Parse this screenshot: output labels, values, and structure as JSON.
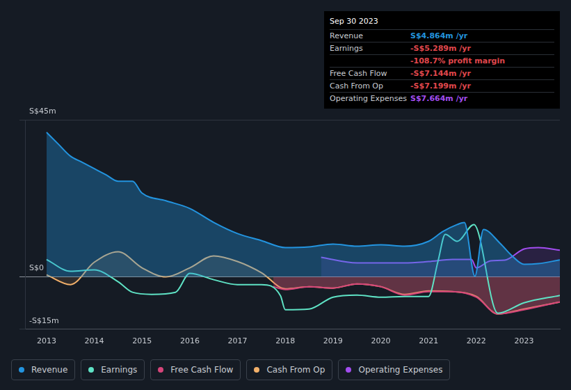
{
  "chart_data": {
    "type": "line",
    "grid": true,
    "legend": "bottom",
    "xlim": [
      2012.55,
      2023.75
    ],
    "xticks": [
      2013,
      2014,
      2015,
      2016,
      2017,
      2018,
      2019,
      2020,
      2021,
      2022,
      2023
    ],
    "ylim": [
      -15,
      45
    ],
    "yticks": [
      {
        "value": -15,
        "label": "-S$15m"
      },
      {
        "value": 0,
        "label": "S$0"
      },
      {
        "value": 45,
        "label": "S$45m"
      }
    ],
    "series": [
      {
        "name": "Revenue",
        "color": "#2394df",
        "x": [
          2013,
          2013.25,
          2013.5,
          2013.75,
          2014,
          2014.25,
          2014.5,
          2014.8,
          2015,
          2015.5,
          2016,
          2016.5,
          2017,
          2017.5,
          2018,
          2018.5,
          2019,
          2019.5,
          2020,
          2020.5,
          2021,
          2021.3,
          2021.6,
          2021.75,
          2021.97,
          2022.15,
          2022.5,
          2022.75,
          2023,
          2023.3,
          2023.75
        ],
        "values": [
          41.4,
          38,
          34.6,
          32.8,
          31,
          29.2,
          27.4,
          27.4,
          24,
          21.8,
          19.6,
          15.6,
          12.4,
          10.4,
          8.4,
          8.6,
          9.4,
          8.8,
          9.2,
          8.8,
          10.2,
          13,
          15,
          15.6,
          0.2,
          13.6,
          9.6,
          6,
          3.6,
          3.8,
          4.864
        ]
      },
      {
        "name": "Earnings",
        "color": "#5fe3c5",
        "x": [
          2013,
          2013.5,
          2014,
          2014.5,
          2014.8,
          2015.2,
          2015.7,
          2016,
          2016.5,
          2017,
          2017.5,
          2017.9,
          2018,
          2018.5,
          2019,
          2019.5,
          2020,
          2020.5,
          2021,
          2021.2,
          2021.35,
          2021.6,
          2021.95,
          2022.45,
          2023,
          2023.75
        ],
        "values": [
          5,
          1.6,
          2,
          -1.4,
          -4.4,
          -5,
          -4.4,
          1,
          -0.8,
          -2.2,
          -2.2,
          -5.4,
          -9.4,
          -9.2,
          -5.8,
          -5.2,
          -5.8,
          -5.6,
          -5.6,
          4.6,
          12.2,
          10.2,
          15,
          -10.4,
          -7.4,
          -5.289
        ]
      },
      {
        "name": "Free Cash Flow",
        "color": "#d6457a",
        "x": [
          2017.75,
          2018,
          2018.5,
          2019,
          2019.5,
          2020,
          2020.5,
          2021,
          2021.5,
          2022,
          2022.45,
          2023,
          2023.75
        ],
        "values": [
          -2.8,
          -3.6,
          -2.8,
          -3.2,
          -2,
          -2.8,
          -5.2,
          -4.2,
          -4.2,
          -5.8,
          -10.6,
          -9.4,
          -7.144
        ]
      },
      {
        "name": "Cash From Op",
        "color": "#f2b06a",
        "x": [
          2013,
          2013.5,
          2014,
          2014.5,
          2015,
          2015.5,
          2016,
          2016.5,
          2017,
          2017.5,
          2018,
          2018.5,
          2019,
          2019.5,
          2020,
          2020.5,
          2021,
          2021.5,
          2022,
          2022.45,
          2023,
          2023.75
        ],
        "values": [
          0.6,
          -2.2,
          4.2,
          7.2,
          2.6,
          0,
          2.6,
          6,
          4.4,
          1.2,
          -3.4,
          -2.8,
          -3.2,
          -2,
          -2.8,
          -5,
          -4,
          -4.2,
          -5.6,
          -10.6,
          -9.2,
          -7.199
        ]
      },
      {
        "name": "Operating Expenses",
        "color": "#a24df0",
        "x": [
          2018.75,
          2019.5,
          2020,
          2020.5,
          2021,
          2021.5,
          2021.9,
          2022,
          2022.3,
          2022.6,
          2023,
          2023.3,
          2023.75
        ],
        "values": [
          5.6,
          4,
          4,
          4,
          4.4,
          5,
          5,
          2.6,
          4.6,
          4.8,
          8,
          8.4,
          7.664
        ]
      }
    ],
    "info_box": {
      "title": "Sep 30 2023",
      "rows": [
        {
          "label": "Revenue",
          "value": "S$4.864m /yr",
          "color": "#2394df"
        },
        {
          "label": "Earnings",
          "value": "-S$5.289m /yr",
          "color": "#e0474c"
        },
        {
          "value": "-108.7% profit margin",
          "color": "#e0474c"
        },
        {
          "label": "Free Cash Flow",
          "value": "-S$7.144m /yr",
          "color": "#e0474c"
        },
        {
          "label": "Cash From Op",
          "value": "-S$7.199m /yr",
          "color": "#e0474c"
        },
        {
          "label": "Operating Expenses",
          "value": "S$7.664m /yr",
          "color": "#a24df0"
        }
      ]
    }
  }
}
